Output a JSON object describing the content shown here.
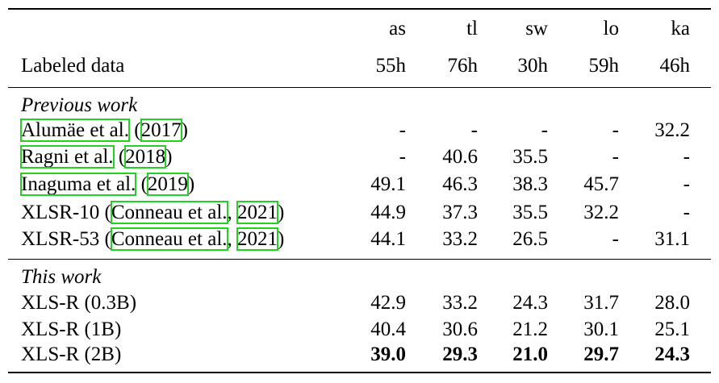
{
  "columns": [
    "as",
    "tl",
    "sw",
    "lo",
    "ka"
  ],
  "labeled": {
    "label": "Labeled data",
    "values": [
      "55h",
      "76h",
      "30h",
      "59h",
      "46h"
    ]
  },
  "previous": {
    "heading": "Previous work",
    "rows": [
      {
        "name": "Alumäe et al.",
        "open": " (",
        "year": "2017",
        "close": ")",
        "values": [
          "-",
          "-",
          "-",
          "-",
          "32.2"
        ]
      },
      {
        "name": "Ragni et al.",
        "open": " (",
        "year": "2018",
        "close": ")",
        "values": [
          "-",
          "40.6",
          "35.5",
          "-",
          "-"
        ]
      },
      {
        "name": "Inaguma et al.",
        "open": " (",
        "year": "2019",
        "close": ")",
        "values": [
          "49.1",
          "46.3",
          "38.3",
          "45.7",
          "-"
        ]
      },
      {
        "prefix": "XLSR-10 (",
        "name": "Conneau et al.",
        "sep": ", ",
        "year": "2021",
        "close": ")",
        "values": [
          "44.9",
          "37.3",
          "35.5",
          "32.2",
          "-"
        ]
      },
      {
        "prefix": "XLSR-53 (",
        "name": "Conneau et al.",
        "sep": ", ",
        "year": "2021",
        "close": ")",
        "values": [
          "44.1",
          "33.2",
          "26.5",
          "-",
          "31.1"
        ]
      }
    ]
  },
  "this_work": {
    "heading": "This work",
    "rows": [
      {
        "name": "XLS-R (0.3B)",
        "values": [
          "42.9",
          "33.2",
          "24.3",
          "31.7",
          "28.0"
        ]
      },
      {
        "name": "XLS-R (1B)",
        "values": [
          "40.4",
          "30.6",
          "21.2",
          "30.1",
          "25.1"
        ]
      },
      {
        "name": "XLS-R (2B)",
        "values": [
          "39.0",
          "29.3",
          "21.0",
          "29.7",
          "24.3"
        ],
        "bold": true
      }
    ]
  }
}
